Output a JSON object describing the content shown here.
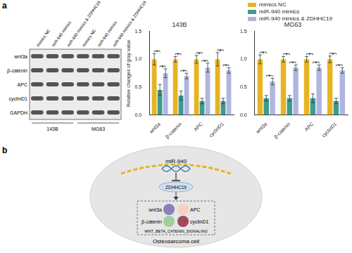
{
  "panel_labels": [
    "a",
    "b"
  ],
  "blot": {
    "proteins": [
      "wnt3a",
      "β-catenin",
      "APC",
      "cyclinD1",
      "GAPDH"
    ],
    "lanes": [
      "mimics NC",
      "miR-940 mimics",
      "miR-940 mimics & ZDHHC19"
    ],
    "cell_lines": [
      "143B",
      "MG63"
    ]
  },
  "chart_data": [
    {
      "type": "bar",
      "title": "143B",
      "y_label": "Relative changes of gray value",
      "categories": [
        "wnt3a",
        "β-catenin",
        "APC",
        "cyclinD1"
      ],
      "series": [
        {
          "name": "mimics NC",
          "color": "#e6b422",
          "values": [
            1.0,
            1.0,
            1.0,
            1.0
          ],
          "errors": [
            0.1,
            0.05,
            0.07,
            0.12
          ]
        },
        {
          "name": "miR-940 mimics",
          "color": "#3f9b90",
          "values": [
            0.45,
            0.35,
            0.25,
            0.25
          ],
          "errors": [
            0.1,
            0.08,
            0.05,
            0.05
          ]
        },
        {
          "name": "miR-940 mimics & ZDHHC19",
          "color": "#aeb6e0",
          "values": [
            0.75,
            0.7,
            0.85,
            0.8
          ],
          "errors": [
            0.08,
            0.05,
            0.08,
            0.05
          ]
        }
      ],
      "ylim": [
        0,
        1.5
      ],
      "yticks": [
        {
          "value": 0,
          "label": "0.0"
        },
        0.5,
        {
          "value": 1,
          "label": "1.0"
        },
        1.5
      ],
      "grid": false,
      "legend": "top right",
      "annotations": [
        {
          "text": "*",
          "category": "wnt3a",
          "between": [
            "mimics NC",
            "miR-940 mimics"
          ]
        },
        {
          "text": "*",
          "category": "wnt3a",
          "between": [
            "miR-940 mimics",
            "miR-940 mimics & ZDHHC19"
          ]
        },
        {
          "text": "*",
          "category": "β-catenin",
          "between": [
            "mimics NC",
            "miR-940 mimics"
          ]
        },
        {
          "text": "*",
          "category": "β-catenin",
          "between": [
            "miR-940 mimics",
            "miR-940 mimics & ZDHHC19"
          ]
        },
        {
          "text": "*",
          "category": "APC",
          "between": [
            "mimics NC",
            "miR-940 mimics"
          ]
        },
        {
          "text": "*",
          "category": "APC",
          "between": [
            "miR-940 mimics",
            "miR-940 mimics & ZDHHC19"
          ]
        },
        {
          "text": "*",
          "category": "cyclinD1",
          "between": [
            "mimics NC",
            "miR-940 mimics"
          ]
        },
        {
          "text": "*",
          "category": "cyclinD1",
          "between": [
            "miR-940 mimics",
            "miR-940 mimics & ZDHHC19"
          ]
        }
      ]
    },
    {
      "type": "bar",
      "title": "MG63",
      "categories": [
        "wnt3a",
        "β-catenin",
        "APC",
        "cyclinD1"
      ],
      "series": [
        {
          "name": "mimics NC",
          "color": "#e6b422",
          "values": [
            1.0,
            1.0,
            1.0,
            1.0
          ],
          "errors": [
            0.08,
            0.05,
            0.05,
            0.06
          ]
        },
        {
          "name": "miR-940 mimics",
          "color": "#3f9b90",
          "values": [
            0.3,
            0.3,
            0.3,
            0.25
          ],
          "errors": [
            0.05,
            0.05,
            0.08,
            0.05
          ]
        },
        {
          "name": "miR-940 mimics & ZDHHC19",
          "color": "#aeb6e0",
          "values": [
            0.6,
            0.85,
            0.85,
            0.8
          ],
          "errors": [
            0.06,
            0.05,
            0.05,
            0.05
          ]
        }
      ],
      "ylim": [
        0,
        1.5
      ],
      "yticks": [
        {
          "value": 0,
          "label": "0.0"
        },
        0.5,
        {
          "value": 1,
          "label": "1.0"
        },
        1.5
      ],
      "grid": false,
      "annotations": [
        {
          "text": "*",
          "category": "wnt3a",
          "between": [
            "mimics NC",
            "miR-940 mimics"
          ]
        },
        {
          "text": "*",
          "category": "wnt3a",
          "between": [
            "miR-940 mimics",
            "miR-940 mimics & ZDHHC19"
          ]
        },
        {
          "text": "*",
          "category": "β-catenin",
          "between": [
            "mimics NC",
            "miR-940 mimics"
          ]
        },
        {
          "text": "*",
          "category": "β-catenin",
          "between": [
            "miR-940 mimics",
            "miR-940 mimics & ZDHHC19"
          ]
        },
        {
          "text": "*",
          "category": "APC",
          "between": [
            "mimics NC",
            "miR-940 mimics"
          ]
        },
        {
          "text": "*",
          "category": "APC",
          "between": [
            "miR-940 mimics",
            "miR-940 mimics & ZDHHC19"
          ]
        },
        {
          "text": "*",
          "category": "cyclinD1",
          "between": [
            "mimics NC",
            "miR-940 mimics"
          ]
        },
        {
          "text": "*",
          "category": "cyclinD1",
          "between": [
            "miR-940 mimics",
            "miR-940 mimics & ZDHHC19"
          ]
        }
      ]
    }
  ],
  "diagram": {
    "mirna": "miR-940",
    "target": "ZDHHC19",
    "pathway_proteins": [
      "wnt3a",
      "APC",
      "β-catenin",
      "cyclinD1"
    ],
    "pathway": "WNT_BETA_CATENIN_SIGNALING",
    "cell": "Osteosarcoma cell"
  }
}
